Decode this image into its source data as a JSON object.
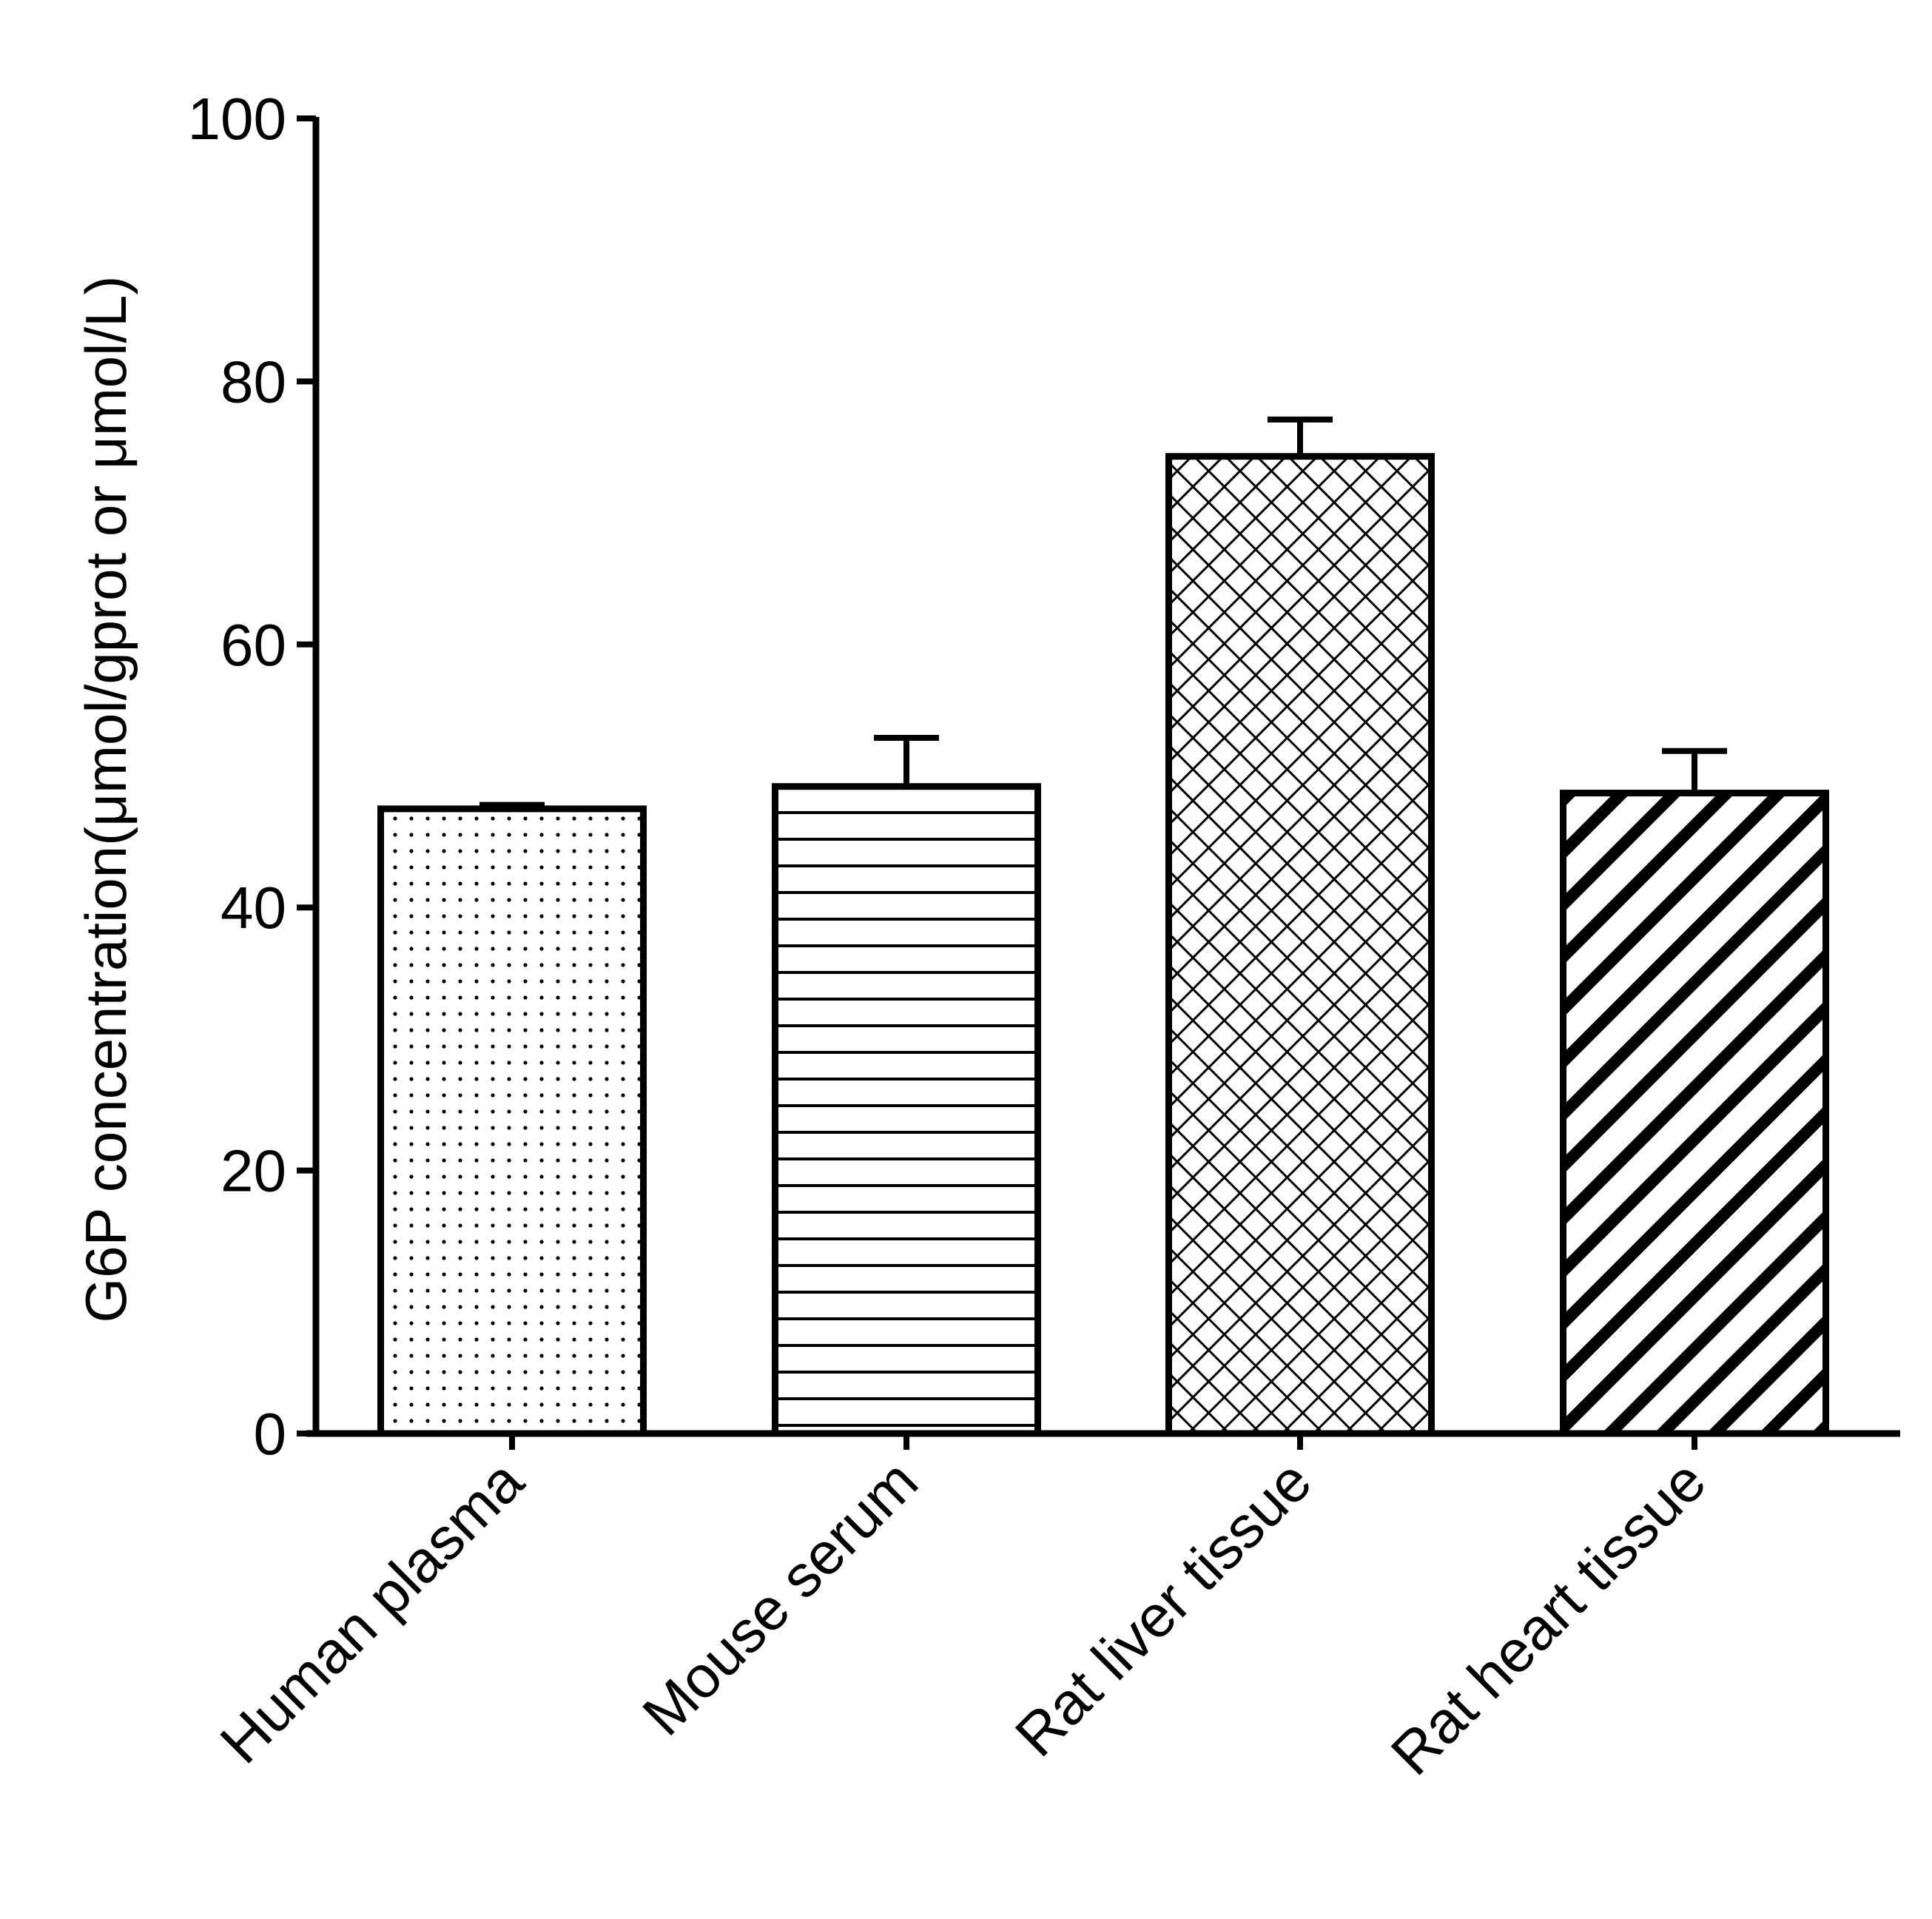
{
  "chart_data": {
    "type": "bar",
    "title": "",
    "xlabel": "",
    "ylabel": "G6P concentration(μmol/gprot or μmol/L)",
    "ylim": [
      0,
      100
    ],
    "yticks": [
      0,
      20,
      40,
      60,
      80,
      100
    ],
    "grid": false,
    "legend": "none",
    "categories": [
      "Human plasma",
      "Mouse serum",
      "Rat liver tissue",
      "Rat heart tissue"
    ],
    "series": [
      {
        "values": [
          47.5,
          49.2,
          74.3,
          48.7
        ],
        "error": [
          0.3,
          3.7,
          2.8,
          3.2
        ],
        "patterns": [
          "dots",
          "horizontal-lines",
          "crosshatch",
          "diagonal-stripes"
        ]
      }
    ],
    "colors": {
      "bar_stroke": "#000000",
      "bar_fill": "#ffffff",
      "axis": "#000000"
    }
  }
}
